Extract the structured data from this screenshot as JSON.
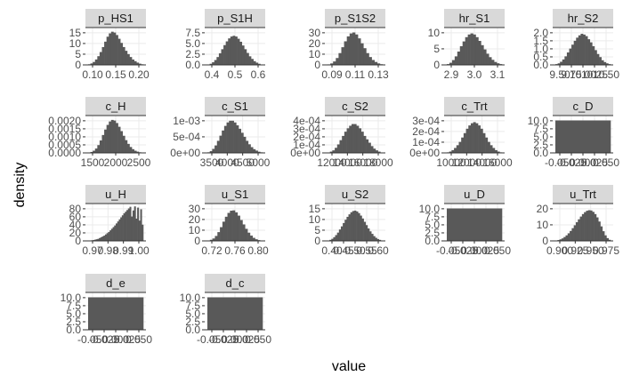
{
  "chart_data": {
    "type": "bar",
    "xlabel": "value",
    "ylabel": "density",
    "panels": [
      {
        "title": "p_HS1",
        "xticks": [
          "0.10",
          "0.15",
          "0.20"
        ],
        "yticks": [
          "0",
          "5",
          "10",
          "15"
        ],
        "ylim": [
          0,
          18
        ],
        "values": [
          0.3,
          0.7,
          1.4,
          2.6,
          4.2,
          6.2,
          8.6,
          11.2,
          13.6,
          15.2,
          16.0,
          15.6,
          14.4,
          12.6,
          10.6,
          8.6,
          6.8,
          5.2,
          3.8,
          2.6,
          1.8,
          1.1,
          0.6,
          0.3
        ]
      },
      {
        "title": "p_S1H",
        "xticks": [
          "0.4",
          "0.5",
          "0.6"
        ],
        "yticks": [
          "0.0",
          "2.5",
          "5.0",
          "7.5"
        ],
        "ylim": [
          0,
          10
        ],
        "values": [
          0.1,
          0.3,
          0.7,
          1.3,
          2.1,
          3.1,
          4.2,
          5.3,
          6.3,
          7.1,
          7.6,
          7.8,
          7.6,
          7.0,
          6.2,
          5.2,
          4.2,
          3.2,
          2.3,
          1.6,
          1.0,
          0.6,
          0.3,
          0.1
        ]
      },
      {
        "title": "p_S1S2",
        "xticks": [
          "0.09",
          "0.11",
          "0.13"
        ],
        "yticks": [
          "0",
          "10",
          "20",
          "30"
        ],
        "ylim": [
          0,
          38
        ],
        "values": [
          0.5,
          1.5,
          3.5,
          7.0,
          12.0,
          18.0,
          24.0,
          29.0,
          32.0,
          33.0,
          31.0,
          27.0,
          22.0,
          17.0,
          12.0,
          8.0,
          5.0,
          3.0,
          1.5,
          0.7
        ]
      },
      {
        "title": "hr_S1",
        "xticks": [
          "2.9",
          "3.0",
          "3.1"
        ],
        "yticks": [
          "0",
          "5",
          "10"
        ],
        "ylim": [
          0,
          14
        ],
        "values": [
          0.3,
          0.8,
          1.8,
          3.2,
          5.0,
          7.0,
          8.8,
          10.4,
          11.4,
          11.8,
          11.4,
          10.4,
          9.0,
          7.4,
          5.8,
          4.2,
          2.9,
          1.9,
          1.1,
          0.6,
          0.3
        ]
      },
      {
        "title": "hr_S2",
        "xticks": [
          "9.50",
          "9.75",
          "10.00",
          "10.25",
          "10.50"
        ],
        "yticks": [
          "0.0",
          "0.5",
          "1.0",
          "1.5",
          "2.0"
        ],
        "ylim": [
          0,
          2.4
        ],
        "values": [
          0.05,
          0.1,
          0.2,
          0.35,
          0.55,
          0.8,
          1.05,
          1.3,
          1.55,
          1.75,
          1.9,
          2.0,
          1.95,
          1.85,
          1.65,
          1.45,
          1.2,
          0.95,
          0.7,
          0.5,
          0.3,
          0.18,
          0.1,
          0.05
        ]
      },
      {
        "title": "c_H",
        "xticks": [
          "1500",
          "2000",
          "2500"
        ],
        "yticks": [
          "0.0000",
          "0.0005",
          "0.0010",
          "0.0015",
          "0.0020"
        ],
        "ylim": [
          0,
          0.0024
        ],
        "values": [
          2e-05,
          6e-05,
          0.00014,
          0.00028,
          0.0005,
          0.0008,
          0.00115,
          0.0015,
          0.0018,
          0.00202,
          0.00212,
          0.00208,
          0.00192,
          0.00168,
          0.0014,
          0.0011,
          0.00082,
          0.00058,
          0.00038,
          0.00024,
          0.00014,
          8e-05,
          4e-05,
          2e-05
        ]
      },
      {
        "title": "c_S1",
        "xticks": [
          "3500",
          "4000",
          "4500",
          "5000"
        ],
        "yticks": [
          "0e+00",
          "5e-04",
          "1e-03"
        ],
        "ylim": [
          0,
          0.0013
        ],
        "values": [
          2e-05,
          6e-05,
          0.00014,
          0.00026,
          0.00042,
          0.0006,
          0.00078,
          0.00094,
          0.00106,
          0.00112,
          0.00112,
          0.00106,
          0.00096,
          0.00084,
          0.0007,
          0.00056,
          0.00042,
          0.0003,
          0.0002,
          0.00013,
          8e-05,
          4e-05,
          2e-05
        ]
      },
      {
        "title": "c_S2",
        "xticks": [
          "12000",
          "14000",
          "16000",
          "18000"
        ],
        "yticks": [
          "0e+00",
          "1e-04",
          "2e-04",
          "3e-04",
          "4e-04"
        ],
        "ylim": [
          0,
          0.00044
        ],
        "values": [
          5e-06,
          1.5e-05,
          3e-05,
          6e-05,
          0.0001,
          0.00015,
          0.0002,
          0.00025,
          0.00029,
          0.00032,
          0.00034,
          0.00034,
          0.00032,
          0.00029,
          0.00025,
          0.0002,
          0.00016,
          0.00012,
          8e-05,
          5e-05,
          3e-05,
          1.5e-05,
          5e-06
        ]
      },
      {
        "title": "c_Trt",
        "xticks": [
          "10000",
          "12000",
          "14000",
          "16000"
        ],
        "yticks": [
          "0e+00",
          "1e-04",
          "2e-04",
          "3e-04"
        ],
        "ylim": [
          0,
          0.00034
        ],
        "values": [
          5e-06,
          1.2e-05,
          2.5e-05,
          4.5e-05,
          7e-05,
          0.0001,
          0.00014,
          0.00018,
          0.00022,
          0.00025,
          0.00027,
          0.00028,
          0.00027,
          0.00025,
          0.00022,
          0.00018,
          0.00014,
          0.0001,
          7e-05,
          4.5e-05,
          2.5e-05,
          1.2e-05,
          5e-06
        ]
      },
      {
        "title": "c_D",
        "xticks": [
          "-0.050",
          "-0.025",
          "0.000",
          "0.025",
          "0.050"
        ],
        "yticks": [
          "0.0",
          "2.5",
          "5.0",
          "7.5",
          "10.0"
        ],
        "ylim": [
          0,
          11.5
        ],
        "values": [
          10
        ]
      },
      {
        "title": "u_H",
        "xticks": [
          "0.97",
          "0.98",
          "0.99",
          "1.00"
        ],
        "yticks": [
          "0",
          "20",
          "40",
          "60",
          "80"
        ],
        "ylim": [
          0,
          92
        ],
        "values": [
          0.5,
          1,
          1.5,
          2,
          3,
          4,
          5,
          7,
          9,
          11,
          13,
          16,
          19,
          22,
          26,
          30,
          34,
          38,
          43,
          48,
          53,
          58,
          63,
          68,
          72,
          76,
          80,
          84,
          60,
          75,
          85,
          55,
          82,
          50,
          78,
          40
        ]
      },
      {
        "title": "u_S1",
        "xticks": [
          "0.72",
          "0.76",
          "0.80"
        ],
        "yticks": [
          "0",
          "10",
          "20",
          "30"
        ],
        "ylim": [
          0,
          34
        ],
        "values": [
          0.3,
          1,
          2.2,
          4.5,
          8,
          12.5,
          17.5,
          22,
          25.5,
          27.5,
          27.8,
          26,
          23,
          19,
          15,
          11,
          7.5,
          4.8,
          2.8,
          1.5,
          0.7,
          0.3
        ]
      },
      {
        "title": "u_S2",
        "xticks": [
          "0.40",
          "0.45",
          "0.50",
          "0.55",
          "0.60"
        ],
        "yticks": [
          "0",
          "5",
          "10",
          "15"
        ],
        "ylim": [
          0,
          18
        ],
        "values": [
          0.2,
          0.5,
          1,
          1.8,
          2.8,
          4,
          5.5,
          7,
          8.6,
          10.2,
          11.6,
          12.8,
          13.8,
          14.4,
          14.6,
          14.2,
          13.4,
          12.2,
          10.8,
          9.2,
          7.6,
          6,
          4.6,
          3.4,
          2.3,
          1.5,
          0.9,
          0.5,
          0.2
        ]
      },
      {
        "title": "u_D",
        "xticks": [
          "-0.050",
          "-0.025",
          "0.000",
          "0.025",
          "0.050"
        ],
        "yticks": [
          "0.0",
          "2.5",
          "5.0",
          "7.5",
          "10.0"
        ],
        "ylim": [
          0,
          11.5
        ],
        "values": [
          10
        ]
      },
      {
        "title": "u_Trt",
        "xticks": [
          "0.900",
          "0.925",
          "0.950",
          "0.975"
        ],
        "yticks": [
          "0",
          "10",
          "20"
        ],
        "ylim": [
          0,
          27
        ],
        "values": [
          0.3,
          0.6,
          1.1,
          1.8,
          2.8,
          4,
          5.5,
          7.2,
          9.2,
          11.3,
          13.5,
          15.6,
          17.6,
          19.4,
          20.8,
          21.8,
          22.2,
          22,
          21,
          19.4,
          17,
          14,
          10.5,
          7,
          4,
          2,
          0.8
        ]
      },
      {
        "title": "d_e",
        "xticks": [
          "-0.050",
          "-0.025",
          "0.000",
          "0.025",
          "0.050"
        ],
        "yticks": [
          "0.0",
          "2.5",
          "5.0",
          "7.5",
          "10.0"
        ],
        "ylim": [
          0,
          11.5
        ],
        "values": [
          10
        ]
      },
      {
        "title": "d_c",
        "xticks": [
          "-0.050",
          "-0.025",
          "0.000",
          "0.025",
          "0.050"
        ],
        "yticks": [
          "0.0",
          "2.5",
          "5.0",
          "7.5",
          "10.0"
        ],
        "ylim": [
          0,
          11.5
        ],
        "values": [
          10
        ]
      }
    ]
  }
}
